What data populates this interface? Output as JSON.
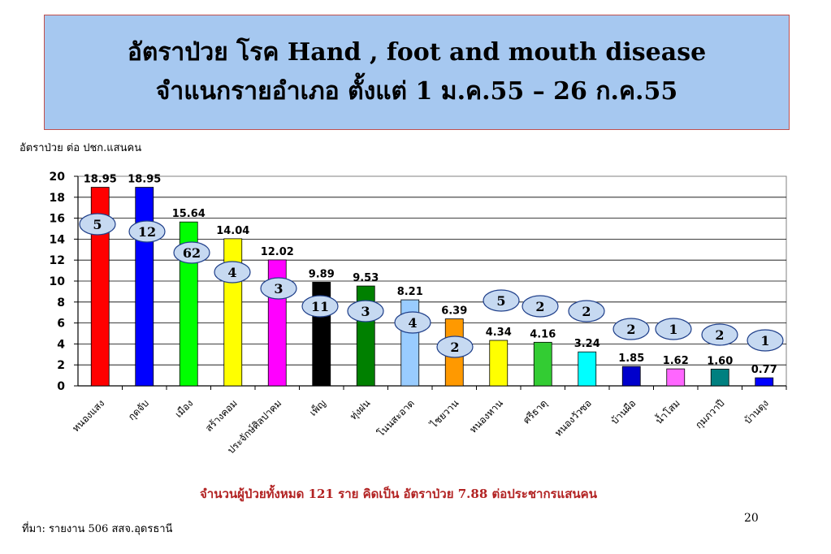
{
  "header": {
    "title_line1": "อัตราป่วย โรค Hand , foot and mouth disease",
    "title_line2": "จำแนกรายอำเภอ ตั้งแต่ 1 ม.ค.55 – 26 ก.ค.55"
  },
  "footer": {
    "summary": "จำนวนผู้ป่วยทั้งหมด 121 ราย คิดเป็น อัตราป่วย 7.88 ต่อประชากรแสนคน",
    "source": "ที่มา: รายงาน 506 สสจ.อุดรธานี",
    "page_number": "20"
  },
  "chart_data": {
    "type": "bar",
    "ylabel": "อัตราป่วย ต่อ ปชก.แสนคน",
    "ylim": [
      0,
      20
    ],
    "yticks": [
      0,
      2,
      4,
      6,
      8,
      10,
      12,
      14,
      16,
      18,
      20
    ],
    "grid": true,
    "categories": [
      "หนองแสง",
      "กุดจับ",
      "เมือง",
      "สร้างคอม",
      "ประจักษ์ศิลปาคม",
      "เพ็ญ",
      "ทุ่งฝน",
      "โนนสะอาด",
      "ไชยวาน",
      "หนองหาน",
      "ศรีธาตุ",
      "หนองวัวซอ",
      "บ้านผือ",
      "น้ำโสม",
      "กุมภวาปี",
      "บ้านดุง"
    ],
    "values": [
      18.95,
      18.95,
      15.64,
      14.04,
      12.02,
      9.89,
      9.53,
      8.21,
      6.39,
      4.34,
      4.16,
      3.24,
      1.85,
      1.62,
      1.6,
      0.77
    ],
    "value_labels": [
      "18.95",
      "18.95",
      "15.64",
      "14.04",
      "12.02",
      "9.89",
      "9.53",
      "8.21",
      "6.39",
      "4.34",
      "4.16",
      "3.24",
      "1.85",
      "1.62",
      "1.60",
      "0.77"
    ],
    "case_counts": [
      "5",
      "12",
      "62",
      "4",
      "3",
      "11",
      "3",
      "4",
      "2",
      "5",
      "2",
      "2",
      "2",
      "1",
      "2",
      "1"
    ],
    "colors": [
      "#ff0000",
      "#0000ff",
      "#00ff00",
      "#ffff00",
      "#ff00ff",
      "#000000",
      "#008000",
      "#99ccff",
      "#ff9900",
      "#ffff00",
      "#33cc33",
      "#00ffff",
      "#0000cc",
      "#ff66ff",
      "#008080",
      "#0000ff"
    ]
  }
}
